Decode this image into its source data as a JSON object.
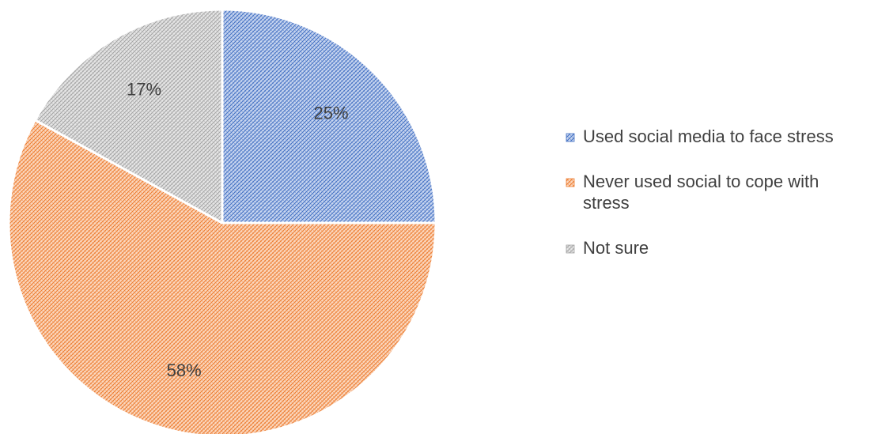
{
  "chart_data": {
    "type": "pie",
    "title": "",
    "legend_position": "right",
    "start_angle_deg": 0,
    "direction": "clockwise",
    "slices": [
      {
        "label": "Used social media to face stress",
        "label_lines": [
          "Used social media to face stress"
        ],
        "value": 25,
        "data_label": "25%",
        "color": "#4472c4",
        "fill_light": "#c9d6f0"
      },
      {
        "label": "Never used social to cope with stress",
        "label_lines": [
          "Never used social to cope with",
          "stress"
        ],
        "value": 58,
        "data_label": "58%",
        "color": "#ed7d31",
        "fill_light": "#fbd8c0"
      },
      {
        "label": "Not sure",
        "label_lines": [
          "Not sure"
        ],
        "value": 17,
        "data_label": "17%",
        "color": "#a5a5a5",
        "fill_light": "#e6e6e6"
      }
    ]
  }
}
